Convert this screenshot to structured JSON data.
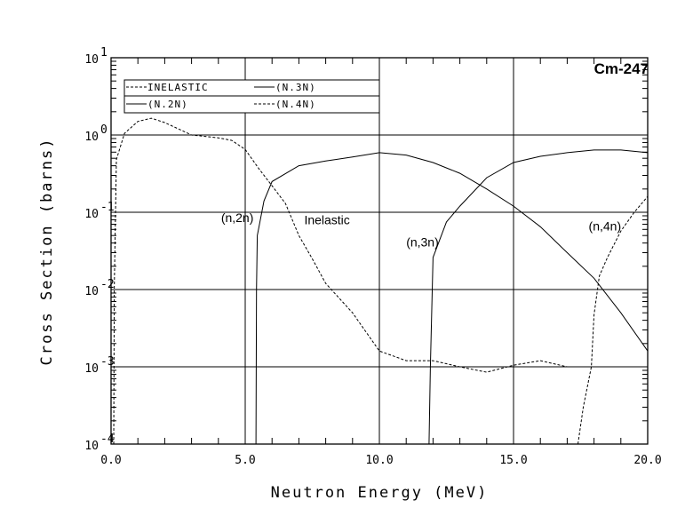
{
  "chart_data": {
    "type": "line",
    "title": "Cm-247",
    "xlabel": "Neutron Energy (MeV)",
    "ylabel": "Cross Section (barns)",
    "xlim": [
      0,
      20
    ],
    "ylim": [
      0.0001,
      10
    ],
    "yscale": "log",
    "grid": true,
    "x_ticks": [
      "0.0",
      "5.0",
      "10.0",
      "15.0",
      "20.0"
    ],
    "y_ticks": [
      {
        "base": "10",
        "exp": "1"
      },
      {
        "base": "10",
        "exp": "0"
      },
      {
        "base": "10",
        "exp": "-1"
      },
      {
        "base": "10",
        "exp": "-2"
      },
      {
        "base": "10",
        "exp": "-3"
      },
      {
        "base": "10",
        "exp": "-4"
      }
    ],
    "legend": {
      "placement": "top-left",
      "entries": [
        {
          "label": "INELASTIC",
          "style": "dashed"
        },
        {
          "label": "(N.3N)",
          "style": "solid"
        },
        {
          "label": "(N.2N)",
          "style": "solid"
        },
        {
          "label": "(N.4N)",
          "style": "dashed"
        }
      ]
    },
    "annotations": [
      {
        "text": "(n,2n)",
        "x": 4.1,
        "y": 0.075
      },
      {
        "text": "Inelastic",
        "x": 7.2,
        "y": 0.07
      },
      {
        "text": "(n,3n)",
        "x": 11,
        "y": 0.036
      },
      {
        "text": "(n,4n)",
        "x": 17.8,
        "y": 0.058
      }
    ],
    "series": [
      {
        "name": "Inelastic",
        "style": "dashed",
        "x": [
          0.1,
          0.12,
          0.2,
          0.5,
          1.0,
          1.5,
          2.0,
          3.0,
          4.0,
          4.5,
          5.0,
          5.5,
          6.0,
          6.5,
          7.0,
          7.5,
          8.0,
          9.0,
          10.0,
          11.0,
          12.0,
          13.0,
          14.0,
          15.0,
          16.0,
          17.0,
          18.0,
          19.0,
          20.0
        ],
        "y": [
          0.0001,
          0.01,
          0.48,
          1.05,
          1.5,
          1.65,
          1.45,
          1.0,
          0.92,
          0.85,
          0.65,
          0.37,
          0.22,
          0.13,
          0.05,
          0.025,
          0.012,
          0.005,
          0.0016,
          0.0012,
          0.0012,
          0.001,
          0.00085,
          0.00105,
          0.0012,
          0.001,
          0.001,
          0.001,
          0.001
        ]
      },
      {
        "name": "(n,2n)",
        "style": "solid",
        "x": [
          5.4,
          5.42,
          5.45,
          5.7,
          6.0,
          7.0,
          8.0,
          9.0,
          10.0,
          11.0,
          12.0,
          13.0,
          14.0,
          15.0,
          16.0,
          17.0,
          18.0,
          19.0,
          20.0
        ],
        "y": [
          0.0001,
          0.01,
          0.05,
          0.14,
          0.25,
          0.4,
          0.46,
          0.52,
          0.59,
          0.55,
          0.44,
          0.32,
          0.2,
          0.12,
          0.065,
          0.03,
          0.014,
          0.005,
          0.0016
        ]
      },
      {
        "name": "(n,3n)",
        "style": "solid",
        "x": [
          11.85,
          11.9,
          12.0,
          12.5,
          13.0,
          14.0,
          15.0,
          16.0,
          17.0,
          18.0,
          19.0,
          20.0
        ],
        "y": [
          0.0001,
          0.001,
          0.026,
          0.075,
          0.12,
          0.28,
          0.44,
          0.53,
          0.59,
          0.64,
          0.64,
          0.59
        ]
      },
      {
        "name": "(n,4n)",
        "style": "dashed",
        "x": [
          17.4,
          17.6,
          17.9,
          18.0,
          18.2,
          18.5,
          19.0,
          19.5,
          20.0
        ],
        "y": [
          0.0001,
          0.0003,
          0.001,
          0.0047,
          0.015,
          0.026,
          0.057,
          0.1,
          0.16
        ]
      }
    ]
  }
}
